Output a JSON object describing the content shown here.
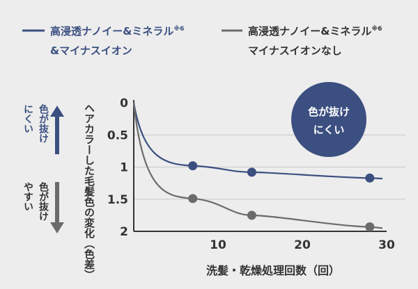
{
  "chart_data": {
    "type": "line",
    "x_ticks": [
      10,
      20,
      30
    ],
    "y_ticks": [
      "0",
      "0.5",
      "1",
      "1.5",
      "2"
    ],
    "xlim": [
      0,
      30
    ],
    "ylim": [
      0,
      2
    ],
    "y_inverted": true,
    "xlabel": "洗髪・乾燥処理回数（回）",
    "ylabel": "ヘアカラーした毛髪色の変化（色差）",
    "grid": true,
    "legend_position": "top",
    "series": [
      {
        "name_line1": "高浸透ナノイー&ミネラル",
        "name_sup": "※6",
        "name_line2": "&マイナスイオン",
        "color": "#3b4f80",
        "x": [
          7,
          14,
          28
        ],
        "y": [
          0.98,
          1.08,
          1.17
        ],
        "curve_end": [
          29.5,
          1.18
        ]
      },
      {
        "name_line1": "高浸透ナノイー&ミネラル",
        "name_sup": "※6",
        "name_line2": "マイナスイオンなし",
        "color": "#6b6b6b",
        "x": [
          7,
          14,
          28
        ],
        "y": [
          1.49,
          1.75,
          1.93
        ],
        "curve_end": [
          29.5,
          1.95
        ]
      }
    ],
    "annotations": {
      "badge": {
        "line1": "色が抜け",
        "line2": "にくい",
        "color": "#3b4f80"
      },
      "arrow_up": {
        "line1": "色が抜け",
        "line2": "にくい",
        "color": "#3b4f80"
      },
      "arrow_down": {
        "line1": "色が抜け",
        "line2": "やすい",
        "color": "#6b6b6b"
      }
    }
  }
}
